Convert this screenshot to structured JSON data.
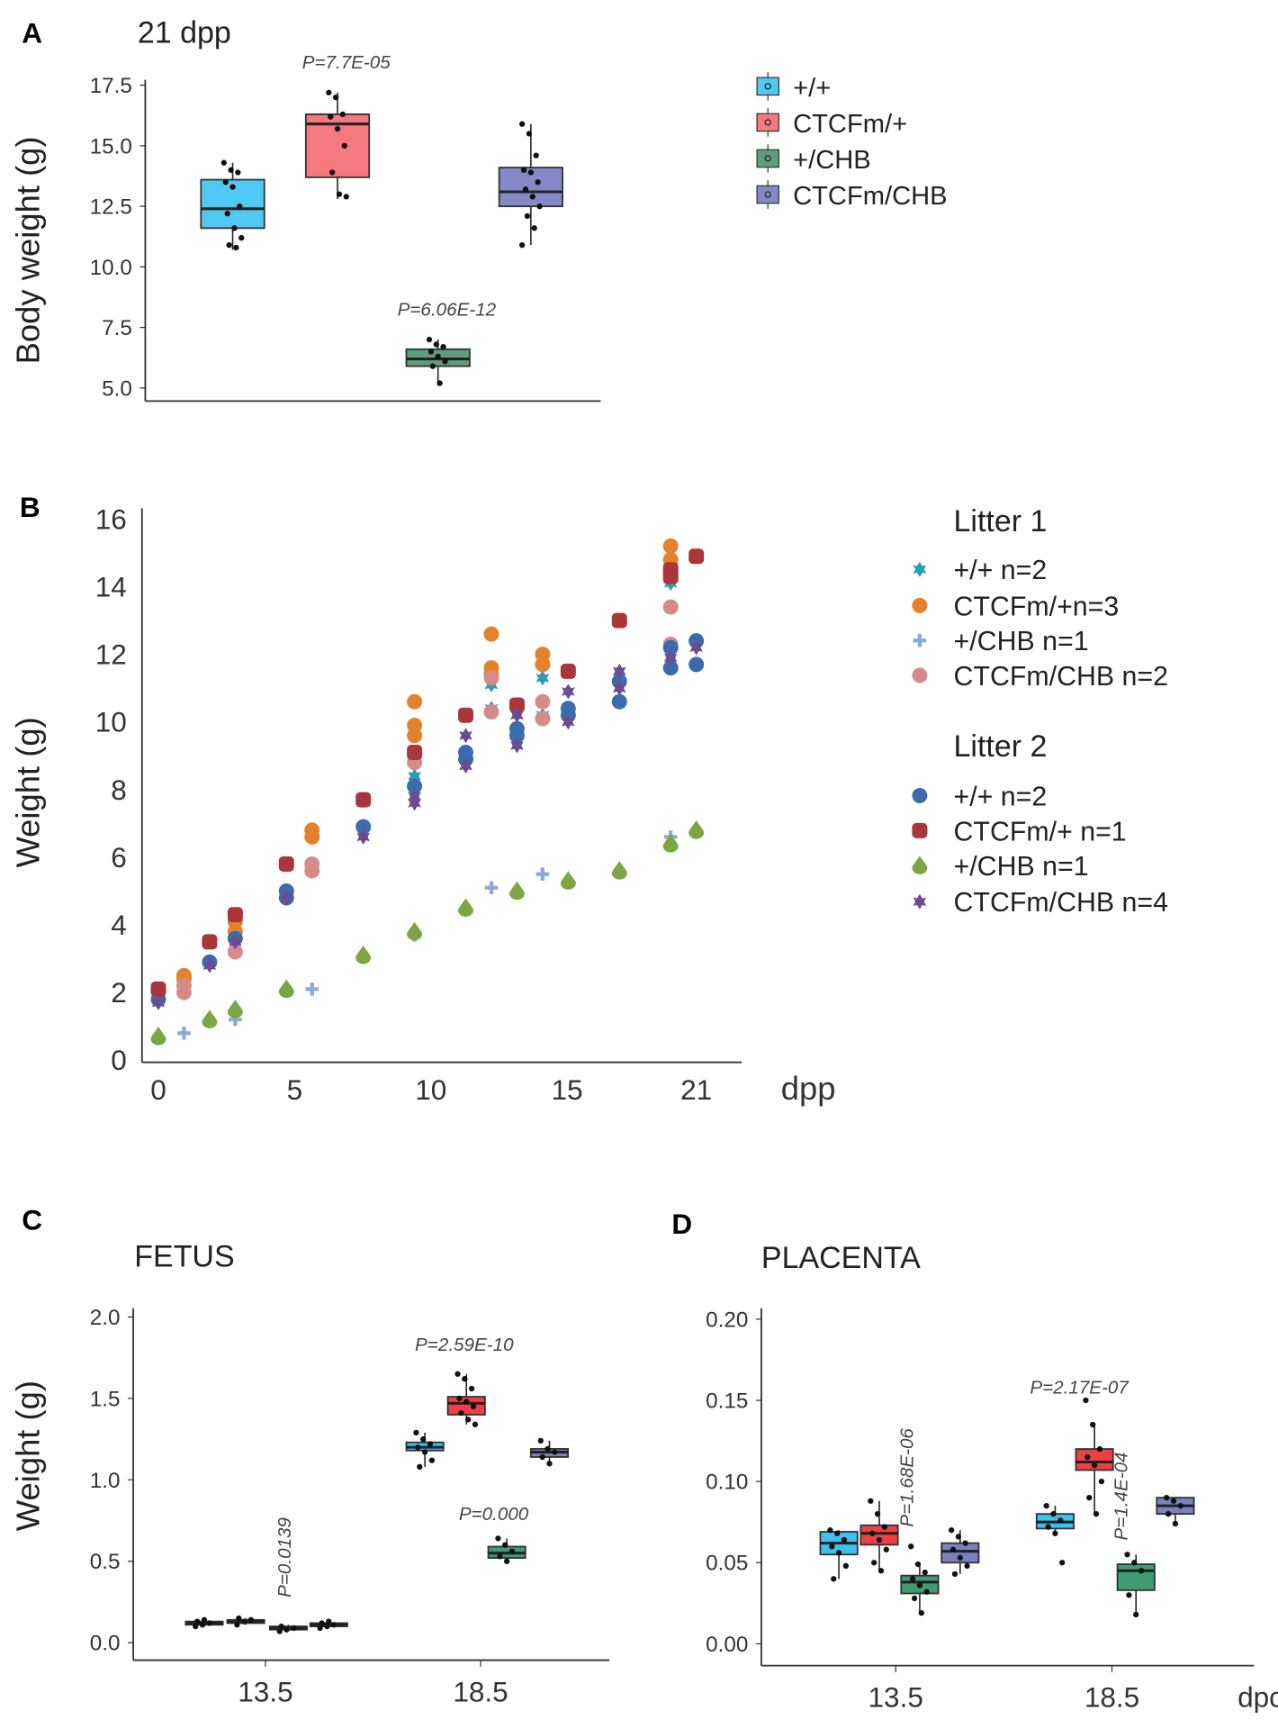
{
  "chart_data": [
    {
      "panel": "A",
      "type": "box",
      "title": "21 dpp",
      "ylabel": "Body weight (g)",
      "ylim": [
        5.0,
        17.5
      ],
      "yticks": [
        "5.0",
        "7.5",
        "10.0",
        "12.5",
        "15.0",
        "17.5"
      ],
      "groups": [
        {
          "name": "+/+",
          "color": "#4fc9f2",
          "q1": 11.6,
          "median": 12.4,
          "q3": 13.6,
          "whisker_low": 10.7,
          "whisker_high": 14.3,
          "points": [
            14.3,
            14.0,
            13.9,
            13.5,
            13.3,
            12.5,
            12.2,
            11.6,
            11.2,
            10.9,
            10.8
          ]
        },
        {
          "name": "CTCFm/+",
          "color": "#f47a80",
          "q1": 13.7,
          "median": 15.9,
          "q3": 16.3,
          "whisker_low": 12.8,
          "whisker_high": 17.2,
          "points": [
            17.2,
            17.0,
            16.3,
            16.2,
            15.7,
            15.0,
            13.9,
            13.0,
            12.9
          ],
          "pvalue": "P=7.7E-05"
        },
        {
          "name": "+/CHB",
          "color": "#5f9e7c",
          "q1": 5.9,
          "median": 6.2,
          "q3": 6.6,
          "whisker_low": 5.1,
          "whisker_high": 7.0,
          "points": [
            7.0,
            6.8,
            6.7,
            6.5,
            6.3,
            6.1,
            5.9,
            5.2
          ],
          "pvalue": "P=6.06E-12"
        },
        {
          "name": "CTCFm/CHB",
          "color": "#8589c6",
          "q1": 12.5,
          "median": 13.1,
          "q3": 14.1,
          "whisker_low": 10.9,
          "whisker_high": 15.9,
          "points": [
            15.9,
            15.5,
            14.6,
            14.0,
            13.9,
            13.5,
            13.2,
            12.9,
            12.5,
            12.1,
            11.6,
            10.9
          ]
        }
      ],
      "legend": "right"
    },
    {
      "panel": "B",
      "type": "scatter",
      "ylabel": "Weight (g)",
      "xlabel": "dpp",
      "ylim": [
        0,
        16
      ],
      "xlim": [
        0,
        21
      ],
      "yticks": [
        "0",
        "2",
        "4",
        "6",
        "8",
        "10",
        "12",
        "14",
        "16"
      ],
      "xticks": [
        "0",
        "5",
        "10",
        "15",
        "21"
      ],
      "legend_groups": [
        "Litter 1",
        "Litter 2"
      ],
      "series": [
        {
          "name": "+/+ n=2",
          "litter": 1,
          "marker": "star",
          "color": "#2a9db2",
          "points": [
            [
              10,
              8.4
            ],
            [
              13,
              11.1
            ],
            [
              13,
              10.4
            ],
            [
              15,
              11.3
            ],
            [
              15,
              10.2
            ],
            [
              20,
              14.1
            ],
            [
              20,
              12.3
            ]
          ]
        },
        {
          "name": "CTCFm/+n=3",
          "litter": 1,
          "marker": "circle",
          "color": "#e3822b",
          "points": [
            [
              1,
              2.5
            ],
            [
              1,
              2.4
            ],
            [
              3,
              3.8
            ],
            [
              3,
              4.1
            ],
            [
              6,
              6.8
            ],
            [
              6,
              6.6
            ],
            [
              10,
              10.6
            ],
            [
              10,
              9.9
            ],
            [
              10,
              9.6
            ],
            [
              13,
              12.6
            ],
            [
              13,
              11.6
            ],
            [
              13,
              11.4
            ],
            [
              15,
              12.0
            ],
            [
              15,
              11.7
            ],
            [
              20,
              15.2
            ],
            [
              20,
              14.8
            ]
          ]
        },
        {
          "name": "+/CHB n=1",
          "litter": 1,
          "marker": "plus",
          "color": "#8ea8da",
          "points": [
            [
              1,
              0.8
            ],
            [
              3,
              1.2
            ],
            [
              6,
              2.1
            ],
            [
              10,
              3.7
            ],
            [
              13,
              5.1
            ],
            [
              15,
              5.5
            ],
            [
              20,
              6.6
            ]
          ]
        },
        {
          "name": "CTCFm/CHB n=2",
          "litter": 1,
          "marker": "circle",
          "color": "#d68b8b",
          "points": [
            [
              1,
              2.2
            ],
            [
              1,
              2.0
            ],
            [
              3,
              3.2
            ],
            [
              6,
              5.8
            ],
            [
              6,
              5.6
            ],
            [
              10,
              8.8
            ],
            [
              13,
              11.3
            ],
            [
              13,
              10.3
            ],
            [
              15,
              10.6
            ],
            [
              15,
              10.1
            ],
            [
              20,
              13.4
            ],
            [
              20,
              12.3
            ]
          ]
        },
        {
          "name": "+/+ n=2",
          "litter": 2,
          "marker": "circle",
          "color": "#3b6bab",
          "points": [
            [
              0,
              1.8
            ],
            [
              2,
              2.9
            ],
            [
              3,
              3.6
            ],
            [
              5,
              5.0
            ],
            [
              5,
              4.8
            ],
            [
              8,
              6.9
            ],
            [
              10,
              8.1
            ],
            [
              12,
              9.1
            ],
            [
              12,
              8.9
            ],
            [
              14,
              9.8
            ],
            [
              14,
              9.6
            ],
            [
              16,
              10.4
            ],
            [
              16,
              10.2
            ],
            [
              18,
              11.2
            ],
            [
              18,
              10.6
            ],
            [
              20,
              12.2
            ],
            [
              20,
              11.6
            ],
            [
              21,
              12.4
            ],
            [
              21,
              11.7
            ]
          ]
        },
        {
          "name": "CTCFm/+ n=1",
          "litter": 2,
          "marker": "square",
          "color": "#a9363b",
          "points": [
            [
              0,
              2.1
            ],
            [
              2,
              3.5
            ],
            [
              3,
              4.3
            ],
            [
              5,
              5.8
            ],
            [
              8,
              7.7
            ],
            [
              10,
              9.1
            ],
            [
              12,
              10.2
            ],
            [
              14,
              10.5
            ],
            [
              16,
              11.5
            ],
            [
              18,
              13.0
            ],
            [
              20,
              14.5
            ],
            [
              20,
              14.3
            ],
            [
              21,
              14.9
            ]
          ]
        },
        {
          "name": "+/CHB n=1",
          "litter": 2,
          "marker": "drop",
          "color": "#7ba641",
          "points": [
            [
              0,
              0.7
            ],
            [
              2,
              1.2
            ],
            [
              3,
              1.5
            ],
            [
              5,
              2.1
            ],
            [
              8,
              3.1
            ],
            [
              10,
              3.8
            ],
            [
              12,
              4.5
            ],
            [
              14,
              5.0
            ],
            [
              16,
              5.3
            ],
            [
              18,
              5.6
            ],
            [
              20,
              6.4
            ],
            [
              21,
              6.8
            ]
          ]
        },
        {
          "name": "CTCFm/CHB n=4",
          "litter": 2,
          "marker": "star",
          "color": "#6b4b92",
          "points": [
            [
              0,
              1.7
            ],
            [
              2,
              2.8
            ],
            [
              3,
              3.5
            ],
            [
              5,
              4.8
            ],
            [
              8,
              6.6
            ],
            [
              10,
              7.8
            ],
            [
              10,
              7.6
            ],
            [
              12,
              9.6
            ],
            [
              12,
              8.7
            ],
            [
              14,
              10.2
            ],
            [
              14,
              9.3
            ],
            [
              16,
              10.9
            ],
            [
              16,
              10.0
            ],
            [
              18,
              11.5
            ],
            [
              18,
              11.0
            ],
            [
              20,
              11.9
            ],
            [
              21,
              12.2
            ]
          ]
        }
      ],
      "legend": "right"
    },
    {
      "panel": "C",
      "type": "box",
      "title": "FETUS",
      "ylabel": "Weight (g)",
      "ylim": [
        0.0,
        2.0
      ],
      "yticks": [
        "0.0",
        "0.5",
        "1.0",
        "1.5",
        "2.0"
      ],
      "categories": [
        "13.5",
        "18.5"
      ],
      "groups": [
        {
          "cat": "13.5",
          "name": "+/+",
          "color": "#3fc0ef",
          "q1": 0.11,
          "median": 0.12,
          "q3": 0.13,
          "whisker_low": 0.1,
          "whisker_high": 0.14,
          "points": [
            0.1,
            0.11,
            0.12,
            0.13,
            0.14
          ]
        },
        {
          "cat": "13.5",
          "name": "CTCFm/+",
          "color": "#ef3f46",
          "q1": 0.12,
          "median": 0.13,
          "q3": 0.14,
          "whisker_low": 0.11,
          "whisker_high": 0.15,
          "points": [
            0.11,
            0.13,
            0.14,
            0.15
          ]
        },
        {
          "cat": "13.5",
          "name": "+/CHB",
          "color": "#3f9b72",
          "q1": 0.08,
          "median": 0.09,
          "q3": 0.1,
          "whisker_low": 0.07,
          "whisker_high": 0.11,
          "points": [
            0.07,
            0.08,
            0.09,
            0.1
          ],
          "pvalue": "P=0.0139"
        },
        {
          "cat": "13.5",
          "name": "CTCFm/CHB",
          "color": "#7b80c0",
          "q1": 0.1,
          "median": 0.11,
          "q3": 0.12,
          "whisker_low": 0.09,
          "whisker_high": 0.13,
          "points": [
            0.09,
            0.1,
            0.11,
            0.12,
            0.13
          ]
        },
        {
          "cat": "18.5",
          "name": "+/+",
          "color": "#3fc0ef",
          "q1": 1.18,
          "median": 1.2,
          "q3": 1.23,
          "whisker_low": 1.08,
          "whisker_high": 1.29,
          "points": [
            1.29,
            1.25,
            1.22,
            1.2,
            1.17,
            1.12,
            1.08
          ]
        },
        {
          "cat": "18.5",
          "name": "CTCFm/+",
          "color": "#ef3f46",
          "q1": 1.4,
          "median": 1.47,
          "q3": 1.51,
          "whisker_low": 1.34,
          "whisker_high": 1.65,
          "points": [
            1.65,
            1.62,
            1.56,
            1.5,
            1.48,
            1.45,
            1.41,
            1.37,
            1.34
          ],
          "pvalue": "P=2.59E-10"
        },
        {
          "cat": "18.5",
          "name": "+/CHB",
          "color": "#3f9b72",
          "q1": 0.52,
          "median": 0.55,
          "q3": 0.59,
          "whisker_low": 0.5,
          "whisker_high": 0.64,
          "points": [
            0.64,
            0.6,
            0.56,
            0.53,
            0.5
          ],
          "pvalue": "P=0.000"
        },
        {
          "cat": "18.5",
          "name": "CTCFm/CHB",
          "color": "#7b80c0",
          "q1": 1.14,
          "median": 1.17,
          "q3": 1.19,
          "whisker_low": 1.1,
          "whisker_high": 1.24,
          "points": [
            1.24,
            1.19,
            1.17,
            1.14,
            1.1
          ]
        }
      ]
    },
    {
      "panel": "D",
      "type": "box",
      "title": "PLACENTA",
      "xlabel": "dpc",
      "ylim": [
        0.0,
        0.2
      ],
      "yticks": [
        "0.00",
        "0.05",
        "0.10",
        "0.15",
        "0.20"
      ],
      "categories": [
        "13.5",
        "18.5"
      ],
      "groups": [
        {
          "cat": "13.5",
          "name": "+/+",
          "color": "#3fc0ef",
          "q1": 0.055,
          "median": 0.062,
          "q3": 0.069,
          "whisker_low": 0.04,
          "whisker_high": 0.07,
          "points": [
            0.07,
            0.068,
            0.064,
            0.06,
            0.056,
            0.048,
            0.04
          ]
        },
        {
          "cat": "13.5",
          "name": "CTCFm/+",
          "color": "#ef3f46",
          "q1": 0.061,
          "median": 0.068,
          "q3": 0.073,
          "whisker_low": 0.045,
          "whisker_high": 0.088,
          "points": [
            0.088,
            0.08,
            0.072,
            0.068,
            0.064,
            0.058,
            0.05,
            0.045
          ]
        },
        {
          "cat": "13.5",
          "name": "+/CHB",
          "color": "#3f9b72",
          "q1": 0.031,
          "median": 0.038,
          "q3": 0.042,
          "whisker_low": 0.019,
          "whisker_high": 0.049,
          "points": [
            0.06,
            0.049,
            0.044,
            0.04,
            0.036,
            0.032,
            0.028,
            0.019
          ],
          "pvalue": "P=1.68E-06"
        },
        {
          "cat": "13.5",
          "name": "CTCFm/CHB",
          "color": "#7b80c0",
          "q1": 0.05,
          "median": 0.057,
          "q3": 0.062,
          "whisker_low": 0.043,
          "whisker_high": 0.07,
          "points": [
            0.07,
            0.066,
            0.062,
            0.058,
            0.053,
            0.048,
            0.043
          ]
        },
        {
          "cat": "18.5",
          "name": "+/+",
          "color": "#3fc0ef",
          "q1": 0.071,
          "median": 0.075,
          "q3": 0.08,
          "whisker_low": 0.068,
          "whisker_high": 0.085,
          "points": [
            0.085,
            0.08,
            0.076,
            0.072,
            0.068,
            0.05
          ]
        },
        {
          "cat": "18.5",
          "name": "CTCFm/+",
          "color": "#ef3f46",
          "q1": 0.107,
          "median": 0.112,
          "q3": 0.12,
          "whisker_low": 0.08,
          "whisker_high": 0.135,
          "points": [
            0.15,
            0.135,
            0.12,
            0.115,
            0.11,
            0.1,
            0.09,
            0.08
          ],
          "pvalue": "P=2.17E-07"
        },
        {
          "cat": "18.5",
          "name": "+/CHB",
          "color": "#3f9b72",
          "q1": 0.033,
          "median": 0.045,
          "q3": 0.049,
          "whisker_low": 0.018,
          "whisker_high": 0.055,
          "points": [
            0.055,
            0.05,
            0.045,
            0.03,
            0.018
          ],
          "pvalue": "P=1.4E-04"
        },
        {
          "cat": "18.5",
          "name": "CTCFm/CHB",
          "color": "#7b80c0",
          "q1": 0.08,
          "median": 0.085,
          "q3": 0.09,
          "whisker_low": 0.074,
          "whisker_high": 0.09,
          "points": [
            0.09,
            0.088,
            0.085,
            0.08,
            0.074
          ]
        }
      ]
    }
  ]
}
